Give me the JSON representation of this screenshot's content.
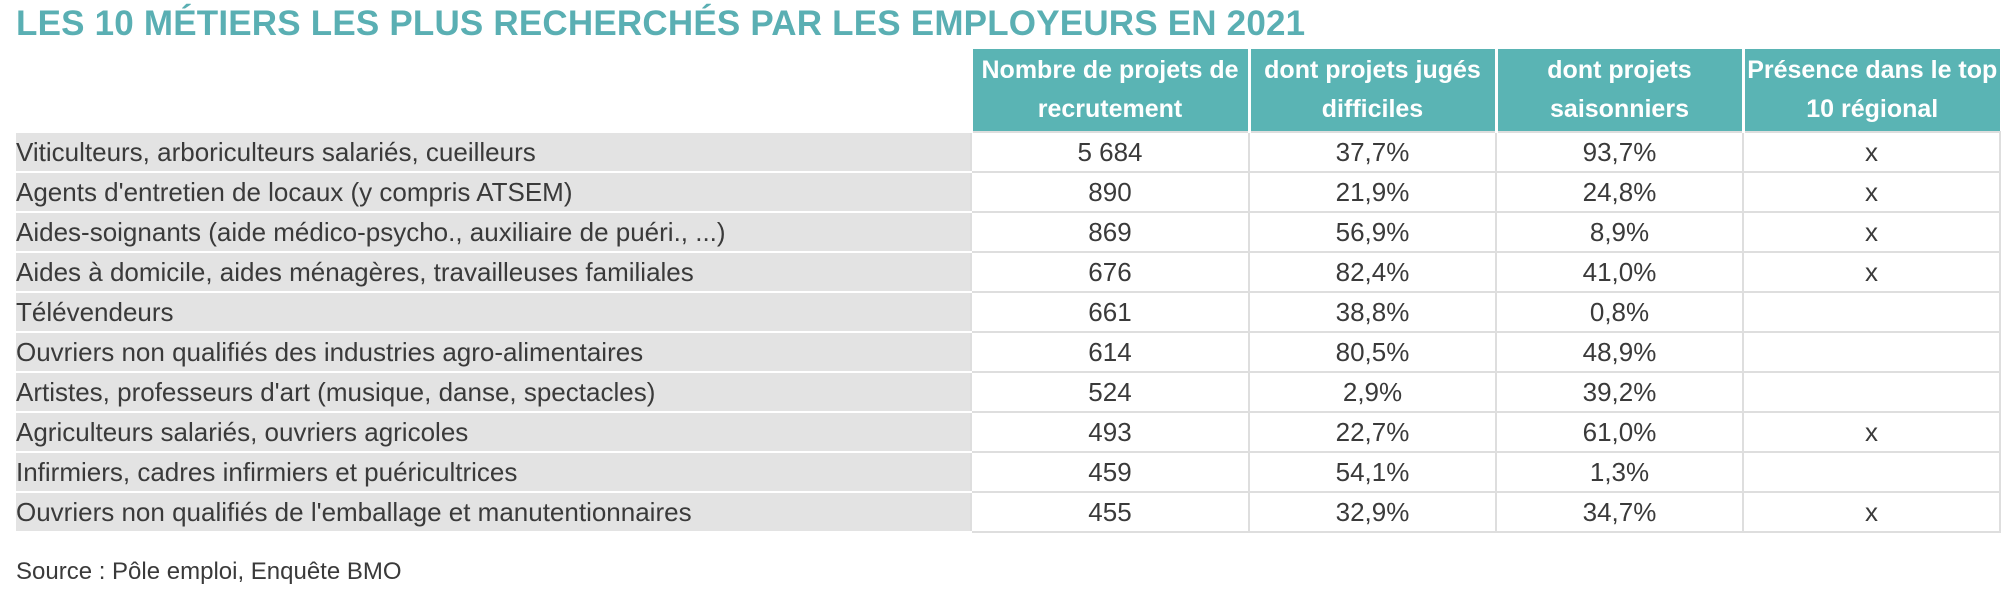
{
  "colors": {
    "title": "#5aafb3",
    "header_bg": "#5ab4b4",
    "label_bg": "#e3e3e3",
    "text": "#3a3a3a"
  },
  "chart_data": {
    "type": "table",
    "title": "LES 10 MÉTIERS LES PLUS RECHERCHÉS PAR LES EMPLOYEURS EN 2021",
    "columns": [
      "Nombre de projets de recrutement",
      "dont projets jugés difficiles",
      "dont projets saisonniers",
      "Présence dans le top 10 régional"
    ],
    "rows": [
      {
        "label": "Viticulteurs, arboriculteurs salariés, cueilleurs",
        "projets": "5 684",
        "difficiles": "37,7%",
        "saisonniers": "93,7%",
        "top10": "x"
      },
      {
        "label": "Agents d'entretien de locaux (y compris ATSEM)",
        "projets": "890",
        "difficiles": "21,9%",
        "saisonniers": "24,8%",
        "top10": "x"
      },
      {
        "label": "Aides-soignants (aide médico-psycho., auxiliaire de puéri., ...)",
        "projets": "869",
        "difficiles": "56,9%",
        "saisonniers": "8,9%",
        "top10": "x"
      },
      {
        "label": "Aides à domicile, aides ménagères, travailleuses familiales",
        "projets": "676",
        "difficiles": "82,4%",
        "saisonniers": "41,0%",
        "top10": "x"
      },
      {
        "label": "Télévendeurs",
        "projets": "661",
        "difficiles": "38,8%",
        "saisonniers": "0,8%",
        "top10": ""
      },
      {
        "label": "Ouvriers non qualifiés des industries agro-alimentaires",
        "projets": "614",
        "difficiles": "80,5%",
        "saisonniers": "48,9%",
        "top10": ""
      },
      {
        "label": "Artistes, professeurs d'art (musique, danse, spectacles)",
        "projets": "524",
        "difficiles": "2,9%",
        "saisonniers": "39,2%",
        "top10": ""
      },
      {
        "label": "Agriculteurs salariés, ouvriers agricoles",
        "projets": "493",
        "difficiles": "22,7%",
        "saisonniers": "61,0%",
        "top10": "x"
      },
      {
        "label": "Infirmiers, cadres infirmiers et puéricultrices",
        "projets": "459",
        "difficiles": "54,1%",
        "saisonniers": "1,3%",
        "top10": ""
      },
      {
        "label": "Ouvriers non qualifiés de l'emballage et manutentionnaires",
        "projets": "455",
        "difficiles": "32,9%",
        "saisonniers": "34,7%",
        "top10": "x"
      }
    ],
    "source": "Source : Pôle emploi, Enquête BMO"
  }
}
